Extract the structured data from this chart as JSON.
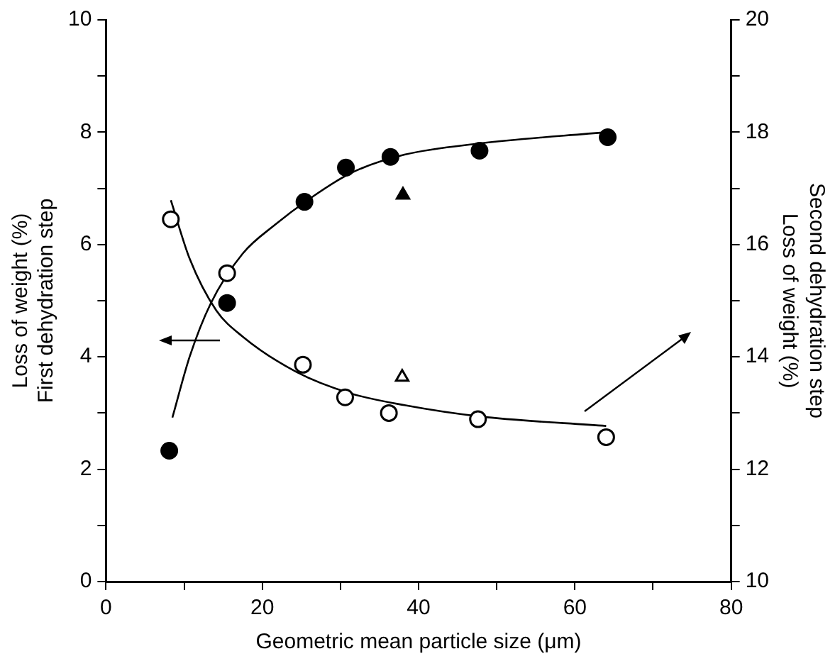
{
  "chart_data": {
    "type": "scatter",
    "xlabel": "Geometric mean particle size (μm)",
    "ylabel": "Loss of weight (%)\nFirst dehydration step",
    "y2label": "Loss of weight (%)\nSecond dehydration step",
    "xlim": [
      0,
      80
    ],
    "xticks": [
      0,
      {
        "value": 10,
        "label": null
      },
      20,
      {
        "value": 30,
        "label": null
      },
      40,
      {
        "value": 50,
        "label": null
      },
      60,
      {
        "value": 70,
        "label": null
      },
      80
    ],
    "ylim": [
      0,
      10
    ],
    "yticks": [
      0,
      {
        "value": 1,
        "label": null
      },
      2,
      {
        "value": 3,
        "label": null
      },
      4,
      {
        "value": 5,
        "label": null
      },
      6,
      {
        "value": 7,
        "label": null
      },
      8,
      {
        "value": 9,
        "label": null
      },
      10
    ],
    "y2lim": [
      10,
      20
    ],
    "y2ticks": [
      10,
      {
        "value": 11,
        "label": null
      },
      12,
      {
        "value": 13,
        "label": null
      },
      14,
      {
        "value": 15,
        "label": null
      },
      16,
      {
        "value": 17,
        "label": null
      },
      18,
      {
        "value": 19,
        "label": null
      },
      20
    ],
    "grid": false,
    "legend": false,
    "series": [
      {
        "type": "line",
        "color": "#000000",
        "marker": "none",
        "x": [
          8.5,
          10.7,
          13.4,
          17.5,
          21.7,
          25.8,
          31.3,
          38.2,
          47.8,
          64.0
        ],
        "values": [
          2.92,
          4.0,
          4.95,
          5.84,
          6.36,
          6.79,
          7.27,
          7.6,
          7.8,
          8.0
        ]
      },
      {
        "type": "line",
        "axis": "y2",
        "color": "#000000",
        "marker": "none",
        "x": [
          8.3,
          10.7,
          14.1,
          17.5,
          24.4,
          31.3,
          38.2,
          47.8,
          64.0
        ],
        "values": [
          16.79,
          15.75,
          14.83,
          14.36,
          13.73,
          13.35,
          13.14,
          12.94,
          12.77
        ]
      },
      {
        "type": "scatter",
        "color": "#000000",
        "marker": "circle",
        "x": [
          8.1,
          15.5,
          25.4,
          30.7,
          36.4,
          47.8,
          64.2
        ],
        "values": [
          2.33,
          4.96,
          6.76,
          7.37,
          7.56,
          7.67,
          7.91
        ]
      },
      {
        "type": "scatter",
        "color": "#000000",
        "marker": "triangle",
        "x": [
          38.0
        ],
        "values": [
          6.88
        ]
      },
      {
        "type": "scatter",
        "axis": "y2",
        "color": "#000000",
        "marker": "circle",
        "x": [
          8.3,
          15.5,
          25.2,
          30.6,
          36.2,
          47.6,
          64.0
        ],
        "values": [
          16.45,
          15.49,
          13.86,
          13.28,
          13.0,
          12.89,
          12.57
        ]
      },
      {
        "type": "scatter",
        "axis": "y2",
        "color": "#000000",
        "marker": "triangle",
        "x": [
          37.9
        ],
        "values": [
          13.64
        ]
      }
    ]
  }
}
